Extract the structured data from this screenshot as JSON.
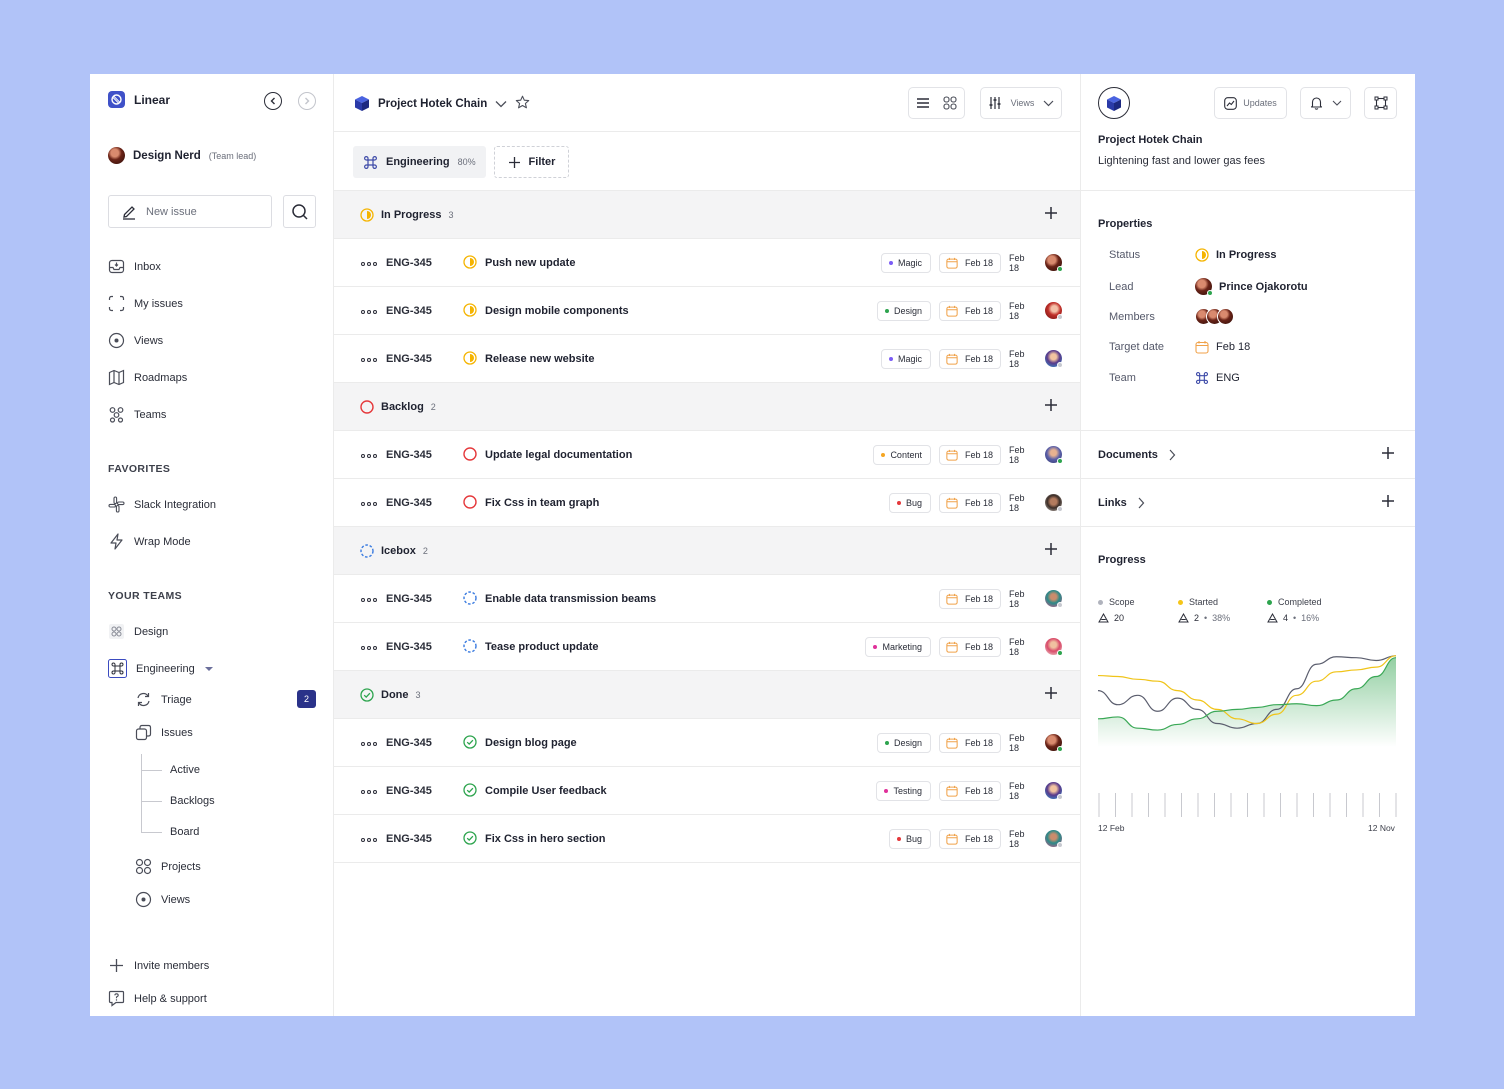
{
  "sidebar": {
    "app_name": "Linear",
    "user": {
      "name": "Design Nerd",
      "role": "(Team lead)"
    },
    "new_issue_placeholder": "New issue",
    "nav": [
      {
        "label": "Inbox",
        "icon": "inbox-icon"
      },
      {
        "label": "My issues",
        "icon": "my-issues-icon"
      },
      {
        "label": "Views",
        "icon": "views-icon"
      },
      {
        "label": "Roadmaps",
        "icon": "map-icon"
      },
      {
        "label": "Teams",
        "icon": "teams-icon"
      }
    ],
    "favorites_heading": "FAVORITES",
    "favorites": [
      {
        "label": "Slack Integration",
        "icon": "slack-icon"
      },
      {
        "label": "Wrap Mode",
        "icon": "lightning-icon"
      }
    ],
    "teams_heading": "YOUR TEAMS",
    "teams": [
      {
        "label": "Design",
        "icon": "design-team-icon"
      },
      {
        "label": "Engineering",
        "icon": "command-icon"
      }
    ],
    "engineering_items": {
      "triage": "Triage",
      "triage_count": "2",
      "issues": "Issues",
      "issue_children": [
        "Active",
        "Backlogs",
        "Board"
      ],
      "projects": "Projects",
      "views": "Views"
    },
    "footer": [
      {
        "label": "Invite members",
        "icon": "plus-icon"
      },
      {
        "label": "Help & support",
        "icon": "help-icon"
      }
    ]
  },
  "main": {
    "project_title": "Project Hotek Chain",
    "views_label": "Views",
    "team_filter": {
      "label": "Engineering",
      "percent": "80%"
    },
    "filter_label": "Filter",
    "groups": [
      {
        "status": "in-progress",
        "label": "In Progress",
        "count": "3",
        "rows": [
          {
            "id": "ENG-345",
            "title": "Push new update",
            "tag": "Magic",
            "tag_color": "#7b5cf5",
            "date": "Feb 18",
            "due": "Feb 18",
            "avatar": "a1"
          },
          {
            "id": "ENG-345",
            "title": "Design  mobile components",
            "tag": "Design",
            "tag_color": "#2da44e",
            "date": "Feb 18",
            "due": "Feb 18",
            "avatar": "a2"
          },
          {
            "id": "ENG-345",
            "title": "Release new website",
            "tag": "Magic",
            "tag_color": "#7b5cf5",
            "date": "Feb 18",
            "due": "Feb 18",
            "avatar": "a3"
          }
        ]
      },
      {
        "status": "backlog",
        "label": "Backlog",
        "count": "2",
        "rows": [
          {
            "id": "ENG-345",
            "title": "Update legal documentation",
            "tag": "Content",
            "tag_color": "#f5a623",
            "date": "Feb 18",
            "due": "Feb 18",
            "avatar": "a4"
          },
          {
            "id": "ENG-345",
            "title": "Fix Css in team graph",
            "tag": "Bug",
            "tag_color": "#e5383b",
            "date": "Feb 18",
            "due": "Feb 18",
            "avatar": "a5"
          }
        ]
      },
      {
        "status": "icebox",
        "label": "Icebox",
        "count": "2",
        "rows": [
          {
            "id": "ENG-345",
            "title": "Enable  data transmission beams",
            "tag": "",
            "tag_color": "",
            "date": "Feb 18",
            "due": "Feb 18",
            "avatar": "a6"
          },
          {
            "id": "ENG-345",
            "title": "Tease product update",
            "tag": "Marketing",
            "tag_color": "#e0309a",
            "date": "Feb 18",
            "due": "Feb 18",
            "avatar": "a7"
          }
        ]
      },
      {
        "status": "done",
        "label": "Done",
        "count": "3",
        "rows": [
          {
            "id": "ENG-345",
            "title": "Design blog page",
            "tag": "Design",
            "tag_color": "#2da44e",
            "date": "Feb 18",
            "due": "Feb 18",
            "avatar": "a1"
          },
          {
            "id": "ENG-345",
            "title": "Compile User feedback",
            "tag": "Testing",
            "tag_color": "#e0309a",
            "date": "Feb 18",
            "due": "Feb 18",
            "avatar": "a3"
          },
          {
            "id": "ENG-345",
            "title": "Fix Css in hero section",
            "tag": "Bug",
            "tag_color": "#e5383b",
            "date": "Feb 18",
            "due": "Feb 18",
            "avatar": "a6"
          }
        ]
      }
    ]
  },
  "panel": {
    "updates_label": "Updates",
    "project_name": "Project Hotek Chain",
    "project_desc": "Lightening fast and lower gas fees",
    "properties_heading": "Properties",
    "properties": {
      "status_key": "Status",
      "status_value": "In Progress",
      "lead_key": "Lead",
      "lead_value": "Prince Ojakorotu",
      "members_key": "Members",
      "target_key": "Target date",
      "target_value": "Feb 18",
      "team_key": "Team",
      "team_value": "ENG"
    },
    "documents_label": "Documents",
    "links_label": "Links",
    "progress_heading": "Progress",
    "legend": [
      {
        "label": "Scope",
        "value": "20",
        "pct": "",
        "color": "#b0b3bd"
      },
      {
        "label": "Started",
        "value": "2",
        "pct": "38%",
        "color": "#f5c518"
      },
      {
        "label": "Completed",
        "value": "4",
        "pct": "16%",
        "color": "#2da44e"
      }
    ]
  },
  "chart_data": {
    "type": "area",
    "x_start_label": "12 Feb",
    "x_end_label": "12 Nov",
    "series": [
      {
        "name": "Scope",
        "color": "#5b5e6e",
        "values": [
          0.6,
          0.45,
          0.55,
          0.38,
          0.52,
          0.4,
          0.25,
          0.2,
          0.25,
          0.4,
          0.62,
          0.88,
          0.96,
          0.95,
          0.92,
          0.97
        ]
      },
      {
        "name": "Started",
        "color": "#f0c419",
        "values": [
          0.76,
          0.75,
          0.72,
          0.7,
          0.6,
          0.5,
          0.4,
          0.3,
          0.25,
          0.35,
          0.55,
          0.7,
          0.8,
          0.82,
          0.85,
          0.97
        ]
      },
      {
        "name": "Completed",
        "color": "#3aa856",
        "values": [
          0.3,
          0.32,
          0.2,
          0.18,
          0.24,
          0.3,
          0.38,
          0.4,
          0.42,
          0.45,
          0.46,
          0.44,
          0.5,
          0.62,
          0.75,
          0.95
        ]
      }
    ]
  }
}
